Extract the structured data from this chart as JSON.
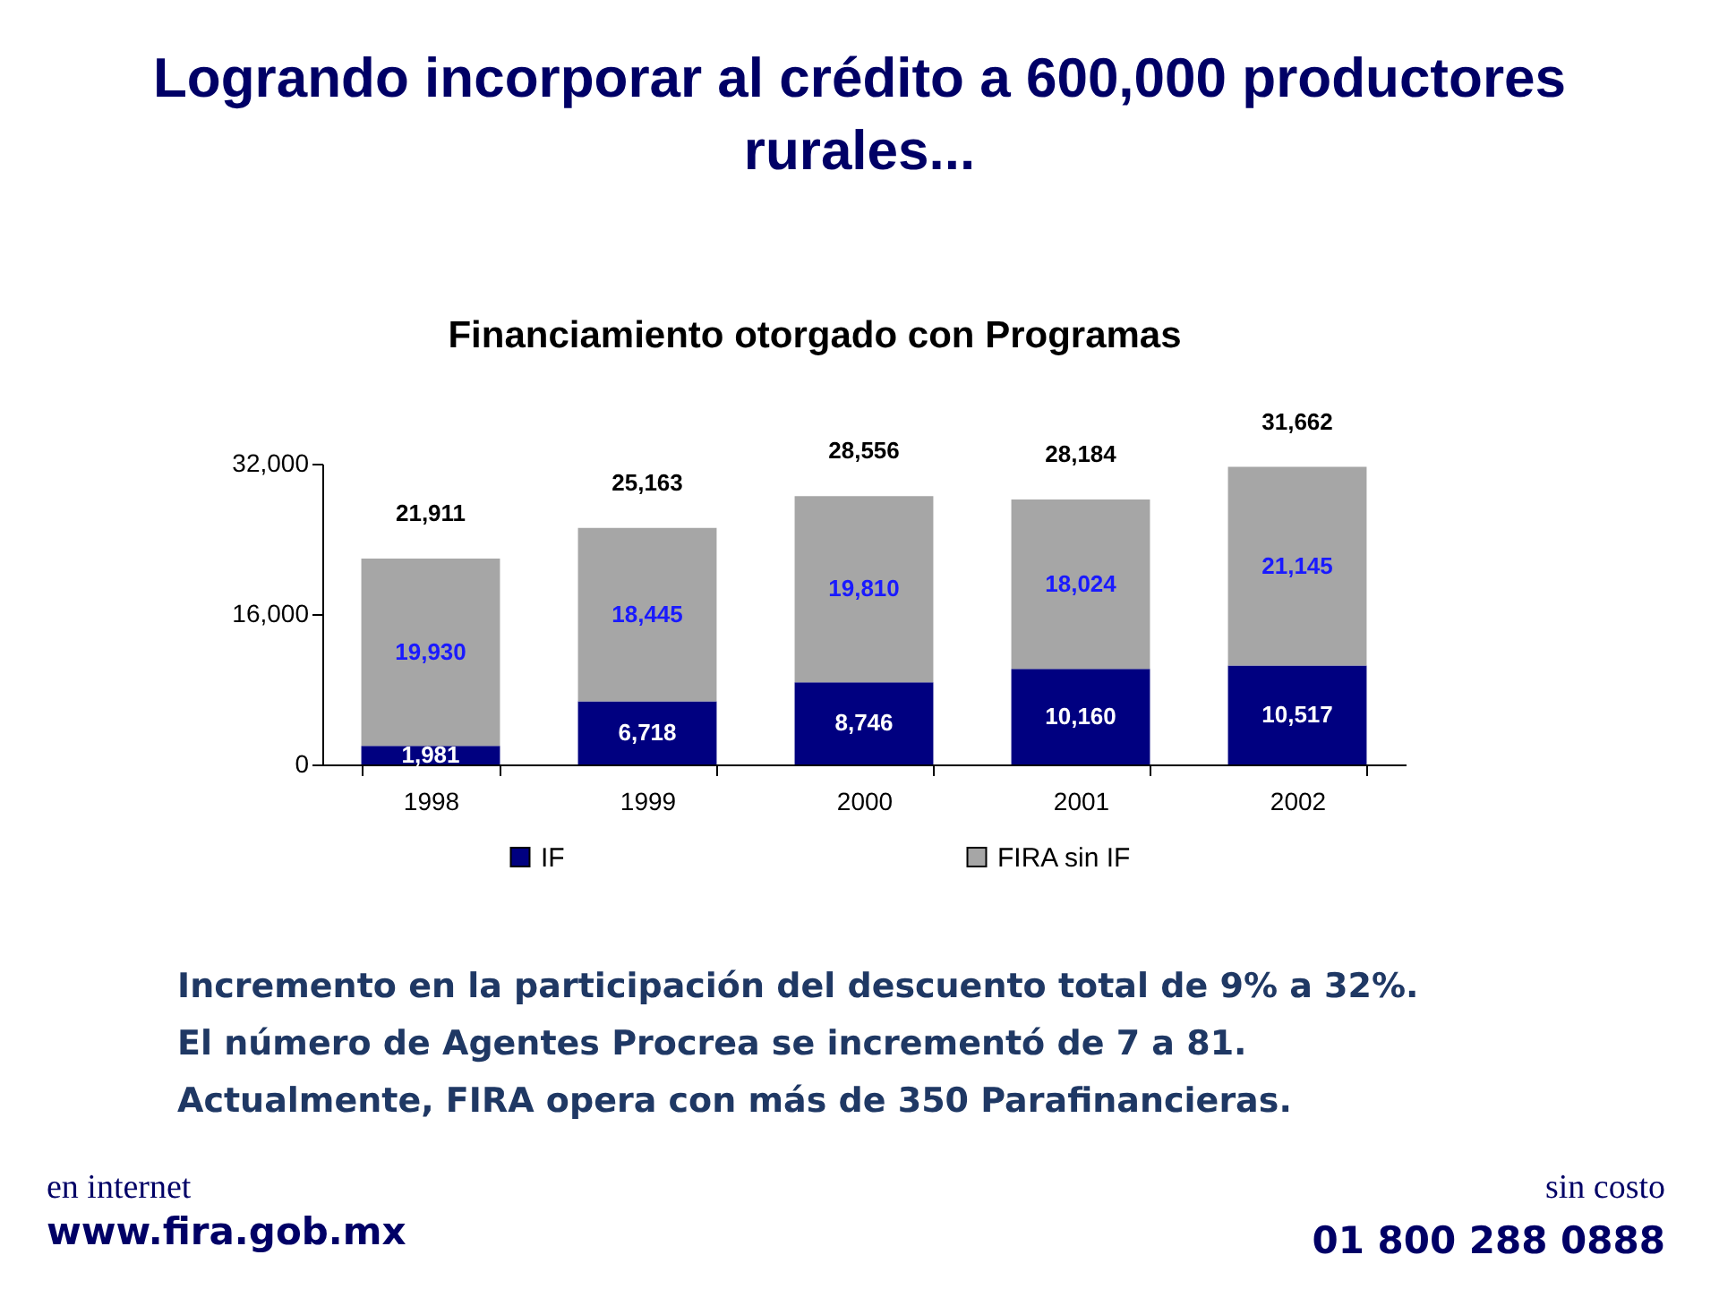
{
  "chart_data": {
    "type": "bar",
    "title": "Logrando incorporar al crédito a 600,000 productores rurales...",
    "subtitle": "Financiamiento otorgado con Programas",
    "categories": [
      "1998",
      "1999",
      "2000",
      "2001",
      "2002"
    ],
    "stacked": true,
    "series": [
      {
        "name": "IF",
        "color": "#000080",
        "values": [
          1981,
          6718,
          8746,
          10160,
          10517
        ],
        "value_labels": [
          "1,981",
          "6,718",
          "8,746",
          "10,160",
          "10,517"
        ]
      },
      {
        "name": "FIRA sin IF",
        "color": "#a6a6a6",
        "values": [
          19930,
          18445,
          19810,
          18024,
          21145
        ],
        "value_labels": [
          "19,930",
          "18,445",
          "19,810",
          "18,024",
          "21,145"
        ]
      }
    ],
    "ylim": [
      0,
      32000
    ],
    "yticks": [
      0,
      {
        "value": 16000,
        "label": "16,000"
      },
      {
        "value": 32000,
        "label": "32,000"
      }
    ],
    "totals": [
      "21,911",
      "25,163",
      "28,556",
      "28,184",
      "31,662"
    ],
    "legend": "bottom",
    "annotations": [
      "Incremento en la participación del descuento total de 9% a 32%.",
      "El número de Agentes Procrea se incrementó de 7 a 81.",
      "Actualmente, FIRA opera con más de 350 Parafinancieras.",
      "en internet",
      "www.fira.gob.mx",
      "sin costo",
      "01 800 288 0888"
    ]
  }
}
